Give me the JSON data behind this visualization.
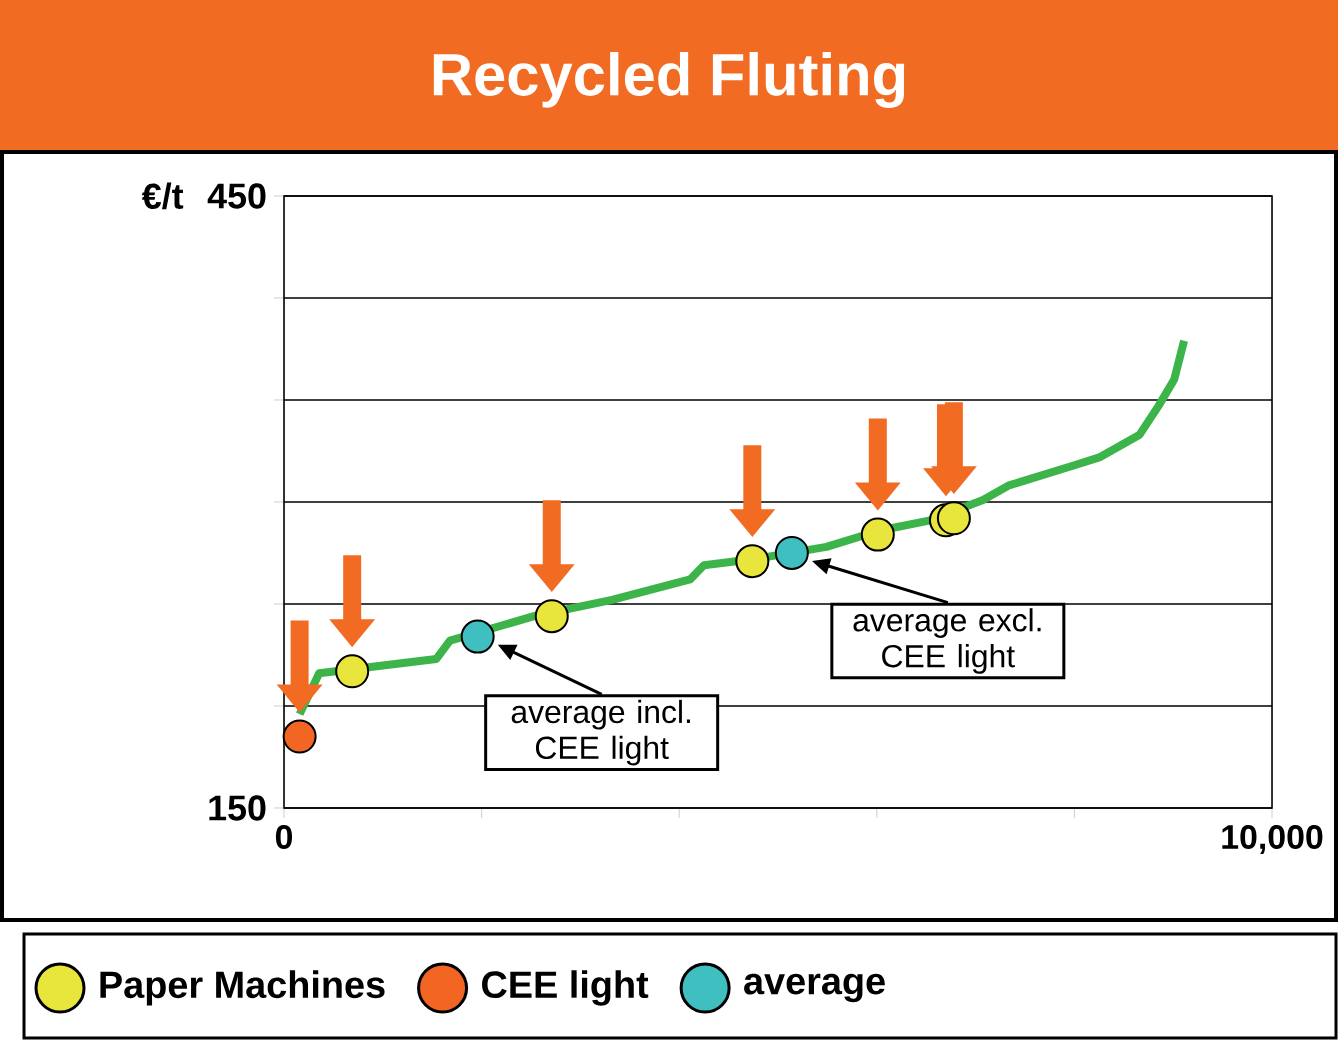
{
  "chart_data": {
    "type": "line",
    "title": "Recycled Fluting",
    "xlim": [
      0,
      10000
    ],
    "ylim": [
      150,
      450
    ],
    "xticks": [
      0,
      {
        "value": 2000,
        "label": null
      },
      {
        "value": 4000,
        "label": null
      },
      {
        "value": 6000,
        "label": null
      },
      {
        "value": 8000,
        "label": null
      },
      {
        "value": 10000,
        "label": "10,000"
      }
    ],
    "yticks": [
      150,
      {
        "value": 200,
        "label": null
      },
      {
        "value": 250,
        "label": null
      },
      {
        "value": 300,
        "label": null
      },
      {
        "value": 350,
        "label": null
      },
      {
        "value": 400,
        "label": null
      },
      450
    ],
    "ylabel": "€/t",
    "grid": "y",
    "legend": "bottom",
    "series": [
      {
        "color": "#3cb44a",
        "line_style": "solid",
        "x": [
          158,
          356,
          1540,
          1680,
          2530,
          3320,
          4110,
          4250,
          4760,
          5490,
          6030,
          6540,
          7075,
          7330,
          8000,
          8260,
          8660,
          8850,
          9010,
          9110
        ],
        "values": [
          196,
          216,
          223,
          232,
          244,
          252,
          262,
          269,
          272,
          278,
          286,
          291,
          301,
          308,
          318,
          322,
          333,
          347,
          360,
          379
        ]
      },
      {
        "type": "scatter",
        "name": "Paper Machines",
        "color": "#e8e63c",
        "marker": "circle",
        "x": [
          690,
          2710,
          4740,
          6010,
          6700,
          6780
        ],
        "values": [
          217,
          244,
          271,
          284,
          291,
          292
        ]
      },
      {
        "type": "scatter",
        "name": "CEE light",
        "color": "#f26522",
        "marker": "circle",
        "x": [
          158
        ],
        "values": [
          185
        ]
      },
      {
        "type": "scatter",
        "name": "average",
        "color": "#3fbfbf",
        "marker": "circle",
        "x": [
          1960,
          5140
        ],
        "values": [
          234,
          275
        ]
      }
    ],
    "annotations": [
      {
        "text": "average incl. CEE light",
        "x": 1960,
        "y": 234
      },
      {
        "text": "average excl. CEE light",
        "x": 5140,
        "y": 275
      }
    ]
  }
}
